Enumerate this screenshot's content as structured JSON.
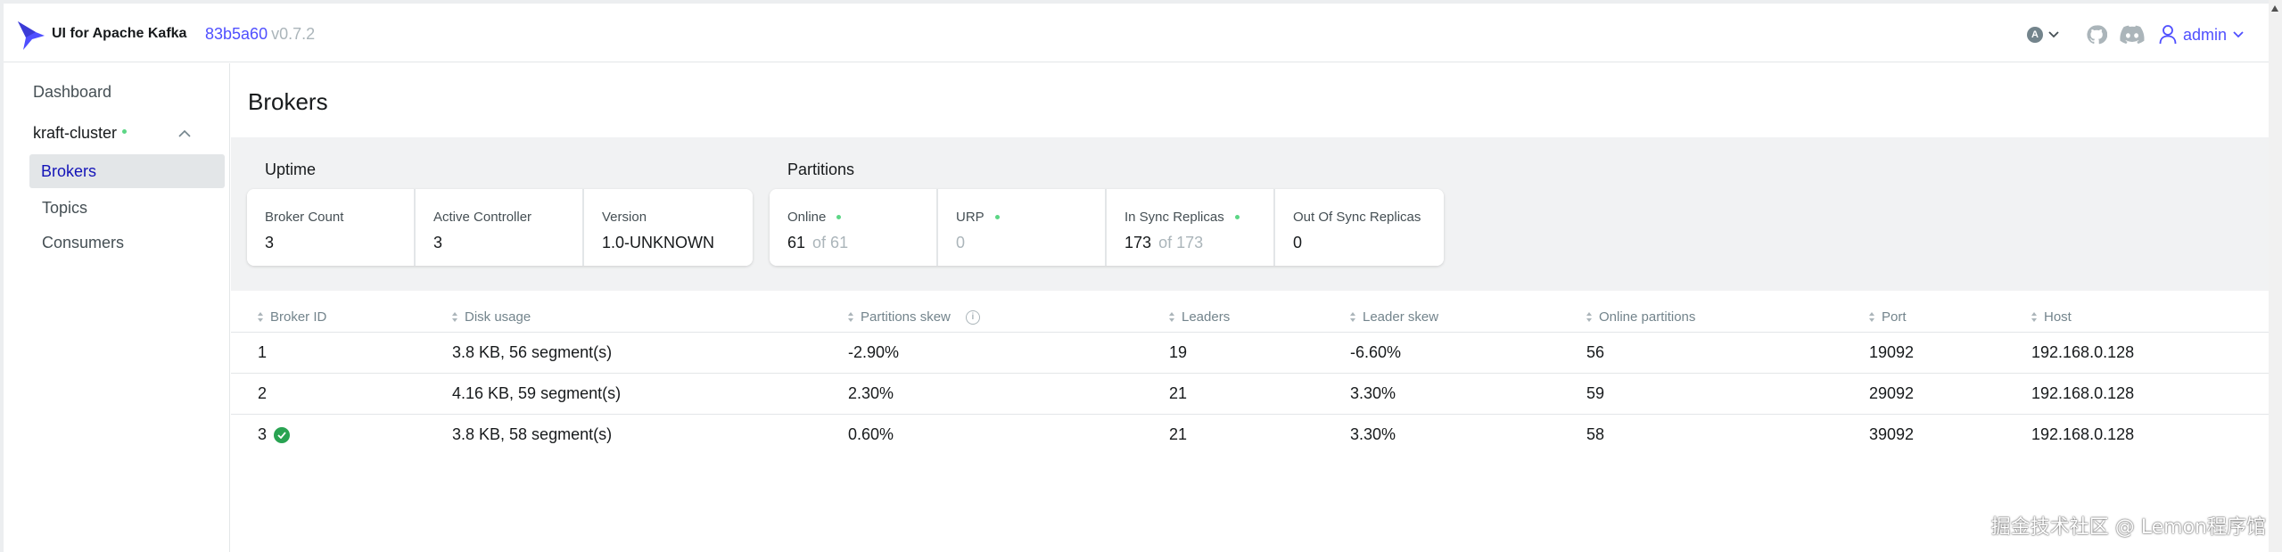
{
  "header": {
    "brand": "UI for Apache Kafka",
    "version_hash": "83b5a60",
    "version": "v0.7.2",
    "theme_badge": "A",
    "user": "admin"
  },
  "sidebar": {
    "dashboard": "Dashboard",
    "cluster": "kraft-cluster",
    "items": [
      {
        "label": "Brokers",
        "active": true
      },
      {
        "label": "Topics"
      },
      {
        "label": "Consumers"
      }
    ]
  },
  "page": {
    "title": "Brokers"
  },
  "metrics": {
    "uptime": {
      "title": "Uptime",
      "cards": [
        {
          "label": "Broker Count",
          "value": "3"
        },
        {
          "label": "Active Controller",
          "value": "3"
        },
        {
          "label": "Version",
          "value": "1.0-UNKNOWN"
        }
      ]
    },
    "partitions": {
      "title": "Partitions",
      "cards": [
        {
          "label": "Online",
          "value": "61",
          "suffix": "of 61"
        },
        {
          "label": "URP",
          "value": "0"
        },
        {
          "label": "In Sync Replicas",
          "value": "173",
          "suffix": "of 173"
        },
        {
          "label": "Out Of Sync Replicas",
          "value": "0"
        }
      ]
    }
  },
  "table": {
    "columns": [
      "Broker ID",
      "Disk usage",
      "Partitions skew",
      "Leaders",
      "Leader skew",
      "Online partitions",
      "Port",
      "Host"
    ],
    "rows": [
      {
        "id": "1",
        "disk": "3.8 KB, 56 segment(s)",
        "pskew": "-2.90%",
        "leaders": "19",
        "lskew": "-6.60%",
        "online": "56",
        "port": "19092",
        "host": "192.168.0.128"
      },
      {
        "id": "2",
        "disk": "4.16 KB, 59 segment(s)",
        "pskew": "2.30%",
        "leaders": "21",
        "lskew": "3.30%",
        "online": "59",
        "port": "29092",
        "host": "192.168.0.128"
      },
      {
        "id": "3",
        "disk": "3.8 KB, 58 segment(s)",
        "pskew": "0.60%",
        "leaders": "21",
        "lskew": "3.30%",
        "online": "58",
        "port": "39092",
        "host": "192.168.0.128"
      }
    ]
  },
  "watermark": "掘金技术社区 @ Lemon程序馆",
  "colors": {
    "accent": "#4f4fff",
    "online_dot": "#5cd685",
    "controller_check": "#29a352",
    "active_nav_bg": "#e3e6e8"
  }
}
